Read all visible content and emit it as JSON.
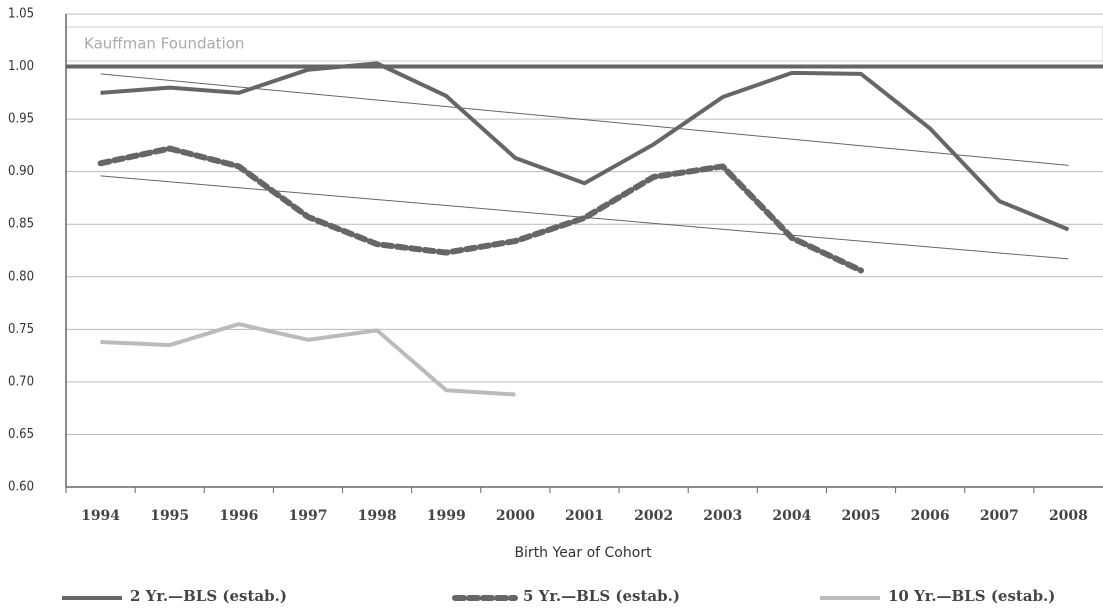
{
  "chart_data": {
    "type": "line",
    "annotation": "Kauffman Foundation",
    "x_label": "Birth Year of Cohort",
    "categories": [
      "1994",
      "1995",
      "1996",
      "1997",
      "1998",
      "1999",
      "2000",
      "2001",
      "2002",
      "2003",
      "2004",
      "2005",
      "2006",
      "2007",
      "2008"
    ],
    "series": [
      {
        "name": "2 Yr.—BLS (estab.)",
        "color": "#666666",
        "dash": false,
        "values": [
          0.975,
          0.98,
          0.975,
          0.997,
          1.003,
          0.972,
          0.913,
          0.889,
          0.926,
          0.971,
          0.994,
          0.993,
          0.941,
          0.872,
          0.845
        ]
      },
      {
        "name": "5 Yr.—BLS (estab.)",
        "color": "#666666",
        "dash": true,
        "values": [
          0.908,
          0.922,
          0.905,
          0.857,
          0.831,
          0.823,
          0.834,
          0.856,
          0.895,
          0.905,
          0.837,
          0.806,
          null,
          null,
          null
        ]
      },
      {
        "name": "10 Yr.—BLS (estab.)",
        "color": "#bbbbbb",
        "dash": false,
        "values": [
          0.738,
          0.735,
          0.755,
          0.74,
          0.749,
          0.692,
          0.688,
          null,
          null,
          null,
          null,
          null,
          null,
          null,
          null
        ]
      }
    ],
    "trendlines": [
      {
        "color": "#666666",
        "values": [
          0.993,
          0.906
        ]
      },
      {
        "color": "#666666",
        "values": [
          0.896,
          0.817
        ]
      }
    ],
    "reference_line": 1,
    "ylim": [
      0.6,
      1.05
    ],
    "yticks": [
      {
        "value": 0.6,
        "label": "0.60"
      },
      {
        "value": 0.65,
        "label": "0.65"
      },
      {
        "value": 0.7,
        "label": "0.70"
      },
      {
        "value": 0.75,
        "label": "0.75"
      },
      {
        "value": 0.8,
        "label": "0.80"
      },
      {
        "value": 0.85,
        "label": "0.85"
      },
      {
        "value": 0.9,
        "label": "0.90"
      },
      {
        "value": 0.95,
        "label": "0.95"
      },
      {
        "value": 1,
        "label": "1.00"
      },
      {
        "value": 1.05,
        "label": "1.05"
      }
    ],
    "grid": true
  }
}
